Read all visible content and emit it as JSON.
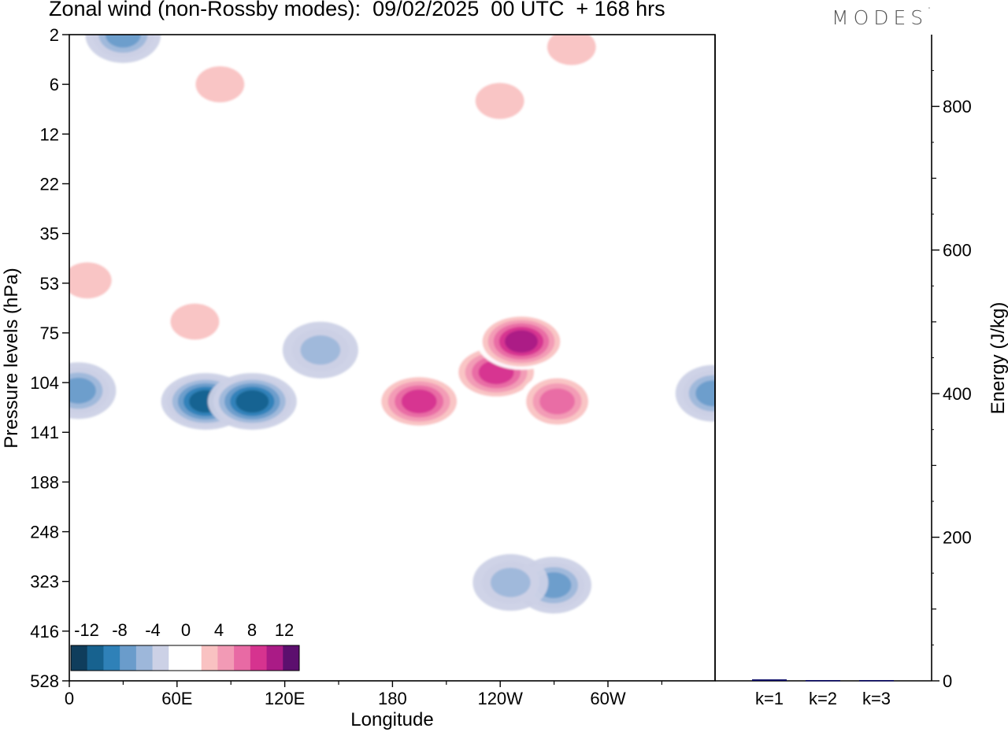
{
  "header": {
    "title": "Zonal wind (non-Rossby modes):  09/02/2025  00 UTC  + 168 hrs",
    "logo_text": "MODES",
    "logo_mark": "°"
  },
  "chart_data": [
    {
      "type": "heatmap",
      "title": "Zonal wind (non-Rossby modes):  09/02/2025  00 UTC  + 168 hrs",
      "xlabel": "Longitude",
      "ylabel": "Pressure levels (hPa)",
      "x_ticks": [
        "0",
        "60E",
        "120E",
        "180",
        "120W",
        "60W"
      ],
      "y_ticks": [
        "2",
        "6",
        "12",
        "22",
        "35",
        "53",
        "75",
        "104",
        "141",
        "188",
        "248",
        "323",
        "416",
        "528"
      ],
      "xlim": [
        "0",
        "360"
      ],
      "ylim_hpa": [
        2,
        528
      ],
      "colorbar": {
        "labels": [
          "-12",
          "-8",
          "-4",
          "0",
          "4",
          "8",
          "12"
        ],
        "levels": [
          -14,
          -12,
          -10,
          -8,
          -6,
          -4,
          -2,
          2,
          4,
          6,
          8,
          10,
          12,
          14
        ],
        "colors": [
          "#0f3d5c",
          "#17628f",
          "#2f81b8",
          "#6a9ccb",
          "#9db7da",
          "#ccd1e6",
          "#ffffff",
          "#ffffff",
          "#f9c2c2",
          "#f29ab5",
          "#e86aa4",
          "#d6338f",
          "#aa1b86",
          "#5c0f6e"
        ],
        "placement": "bottom-left inside"
      },
      "features": [
        {
          "desc": "negative core",
          "lon": 76,
          "p": 118,
          "value": -12
        },
        {
          "desc": "negative core",
          "lon": 102,
          "p": 118,
          "value": -12
        },
        {
          "desc": "negative band",
          "lon": 140,
          "p": 85,
          "value": -6
        },
        {
          "desc": "negative edge",
          "lon": 5,
          "p": 110,
          "value": -8
        },
        {
          "desc": "negative edge",
          "lon": 359,
          "p": 112,
          "value": -8
        },
        {
          "desc": "negative core top",
          "lon": 30,
          "p": 2,
          "value": -8
        },
        {
          "desc": "negative core",
          "lon": 270,
          "p": 330,
          "value": -8
        },
        {
          "desc": "negative patch",
          "lon": 246,
          "p": 325,
          "value": -6
        },
        {
          "desc": "positive core",
          "lon": 195,
          "p": 118,
          "value": 10
        },
        {
          "desc": "positive core",
          "lon": 238,
          "p": 98,
          "value": 10
        },
        {
          "desc": "positive core",
          "lon": 252,
          "p": 80,
          "value": 12
        },
        {
          "desc": "positive band",
          "lon": 272,
          "p": 118,
          "value": 8
        },
        {
          "desc": "positive patch",
          "lon": 70,
          "p": 70,
          "value": 4
        },
        {
          "desc": "positive patch",
          "lon": 84,
          "p": 6,
          "value": 4
        },
        {
          "desc": "positive patch",
          "lon": 10,
          "p": 52,
          "value": 4
        },
        {
          "desc": "positive patch",
          "lon": 280,
          "p": 3,
          "value": 4
        },
        {
          "desc": "positive patch",
          "lon": 240,
          "p": 8,
          "value": 4
        }
      ]
    },
    {
      "type": "bar",
      "ylabel": "Energy (J/kg)",
      "categories": [
        "k=1",
        "k=2",
        "k=3"
      ],
      "values": [
        2,
        1,
        1
      ],
      "ylim": [
        0,
        900
      ],
      "y_ticks": [
        "0",
        "200",
        "400",
        "600",
        "800"
      ],
      "bar_color": "#000060"
    }
  ]
}
